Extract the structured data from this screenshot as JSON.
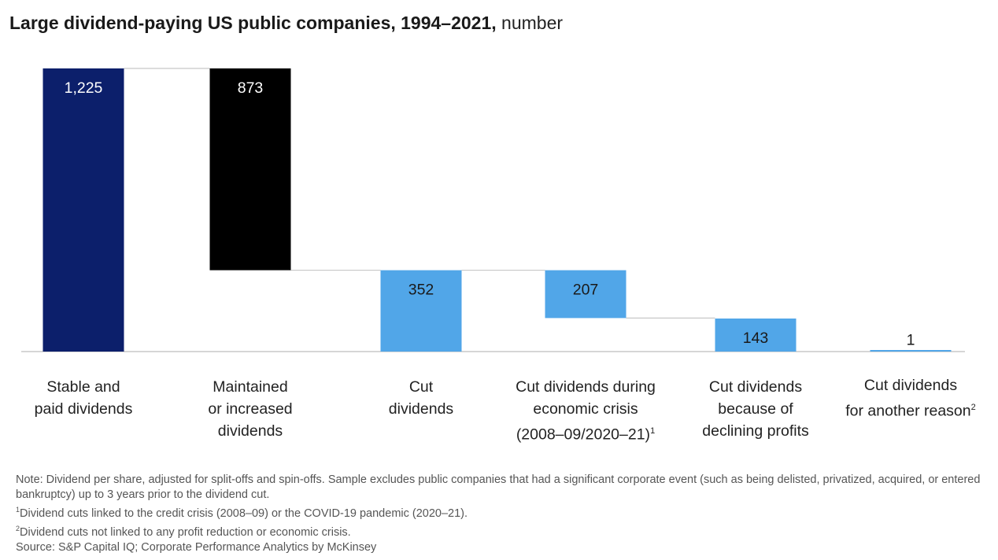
{
  "title": {
    "bold": "Large dividend-paying US public companies, 1994–2021,",
    "unit": "number"
  },
  "chart_data": {
    "type": "waterfall",
    "title": "Large dividend-paying US public companies, 1994–2021",
    "unit": "number",
    "ylim": [
      0,
      1225
    ],
    "colors": {
      "total": "#0c1f6b",
      "subtotal": "#000000",
      "breakdown": "#51a6e8",
      "connector": "#c8c8c8",
      "axis": "#c8c8c8"
    },
    "bars": [
      {
        "category": "Stable and paid dividends",
        "value": 1225,
        "value_label": "1,225",
        "base": 0,
        "top": 1225,
        "label_color": "#ffffff",
        "kind": "total"
      },
      {
        "category": "Maintained or increased dividends",
        "value": 873,
        "value_label": "873",
        "base": 352,
        "top": 1225,
        "label_color": "#ffffff",
        "kind": "subtotal"
      },
      {
        "category": "Cut dividends",
        "value": 352,
        "value_label": "352",
        "base": 0,
        "top": 352,
        "label_color": "#1a1a1a",
        "kind": "breakdown"
      },
      {
        "category": "Cut dividends during economic crisis (2008–09/2020–21)",
        "value": 207,
        "value_label": "207",
        "base": 145,
        "top": 352,
        "label_color": "#1a1a1a",
        "kind": "breakdown"
      },
      {
        "category": "Cut dividends because of declining profits",
        "value": 143,
        "value_label": "143",
        "base": 0,
        "top": 143,
        "label_color": "#1a1a1a",
        "kind": "breakdown"
      },
      {
        "category": "Cut dividends for another reason",
        "value": 1,
        "value_label": "1",
        "base": 0,
        "top": 1,
        "label_color": "#1a1a1a",
        "kind": "breakdown"
      }
    ]
  },
  "category_labels": [
    {
      "lines": [
        "Stable and",
        "paid dividends"
      ],
      "sup": ""
    },
    {
      "lines": [
        "Maintained",
        "or increased",
        "dividends"
      ],
      "sup": ""
    },
    {
      "lines": [
        "Cut",
        "dividends"
      ],
      "sup": ""
    },
    {
      "lines": [
        "Cut dividends during",
        "economic crisis",
        "(2008–09/2020–21)"
      ],
      "sup": "1"
    },
    {
      "lines": [
        "Cut dividends",
        "because of",
        "declining profits"
      ],
      "sup": ""
    },
    {
      "lines": [
        "Cut dividends",
        "for another reason"
      ],
      "sup": "2"
    }
  ],
  "notes": {
    "note": "Note: Dividend per share, adjusted for split-offs and spin-offs. Sample excludes public companies that had a significant corporate event (such as being delisted, privatized, acquired, or entered bankruptcy) up to 3 years prior to the dividend cut.",
    "footnote1_mark": "1",
    "footnote1": "Dividend cuts linked to the credit crisis (2008–09) or the COVID-19 pandemic (2020–21).",
    "footnote2_mark": "2",
    "footnote2": "Dividend cuts not linked to any profit reduction or economic crisis.",
    "source": "Source: S&P Capital IQ; Corporate Performance Analytics by McKinsey"
  }
}
